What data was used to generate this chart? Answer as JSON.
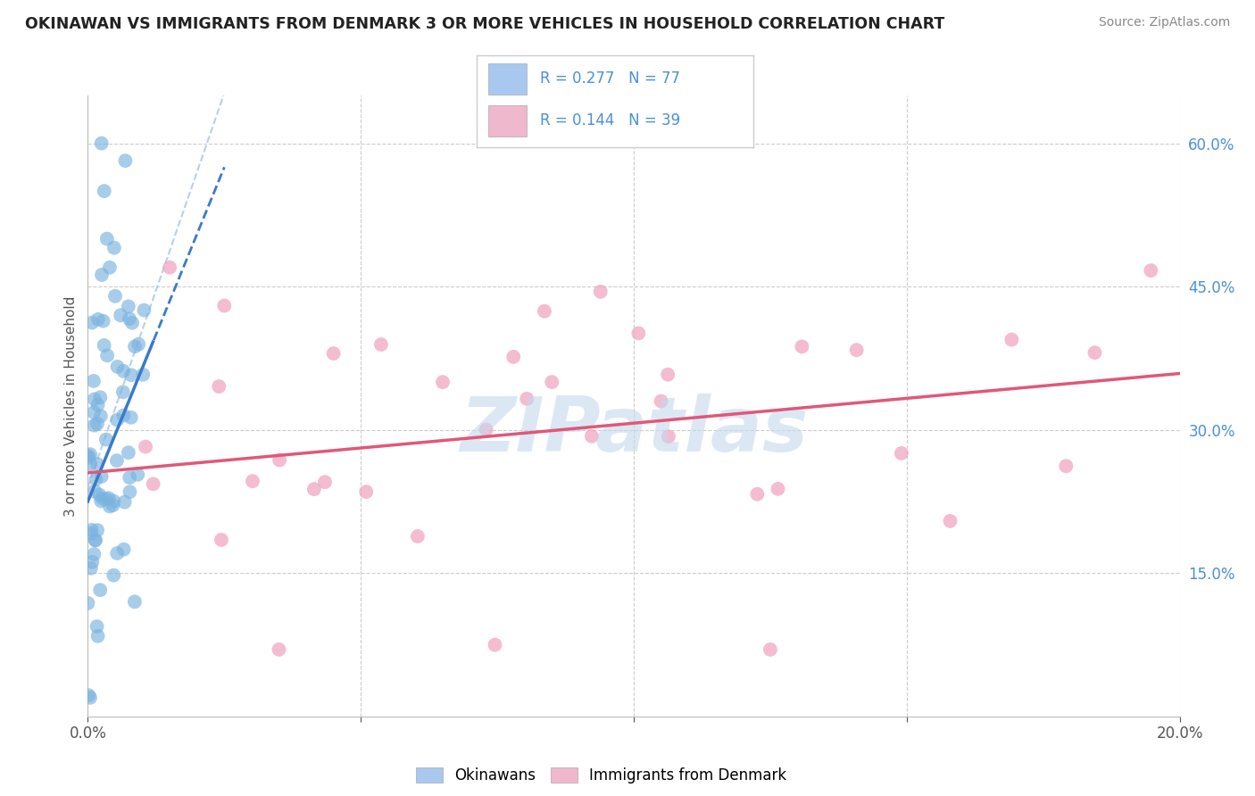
{
  "title": "OKINAWAN VS IMMIGRANTS FROM DENMARK 3 OR MORE VEHICLES IN HOUSEHOLD CORRELATION CHART",
  "source": "Source: ZipAtlas.com",
  "ylabel": "3 or more Vehicles in Household",
  "xlim": [
    0.0,
    20.0
  ],
  "ylim": [
    0.0,
    65.0
  ],
  "x_ticks": [
    0,
    5,
    10,
    15,
    20
  ],
  "x_tick_labels_show": [
    "0.0%",
    "",
    "",
    "",
    "20.0%"
  ],
  "y_ticks_right": [
    15,
    30,
    45,
    60
  ],
  "y_tick_labels_right": [
    "15.0%",
    "30.0%",
    "45.0%",
    "60.0%"
  ],
  "blue_scatter_color": "#7ab3e0",
  "pink_scatter_color": "#f0a0bc",
  "blue_trend_color": "#3a7bc8",
  "pink_trend_color": "#e05878",
  "diag_color": "#aac8e8",
  "background_color": "#ffffff",
  "grid_color": "#cccccc",
  "watermark": "ZIPatlas",
  "watermark_color": "#c5d8ed",
  "legend_blue_fill": "#a8c8f0",
  "legend_pink_fill": "#f0b8cc",
  "legend_text_color": "#4a90d9",
  "legend_r1": "R = 0.277",
  "legend_n1": "N = 77",
  "legend_r2": "R = 0.144",
  "legend_n2": "N = 39",
  "title_color": "#222222",
  "source_color": "#888888",
  "ylabel_color": "#555555",
  "axis_label_color": "#555555",
  "right_tick_color": "#4a90d9",
  "pink_trend_slope": 0.52,
  "pink_trend_intercept": 25.5,
  "blue_trend_slope": 14.0,
  "blue_trend_intercept": 22.5,
  "blue_solid_end": 1.2,
  "blue_line_start": 0.0
}
